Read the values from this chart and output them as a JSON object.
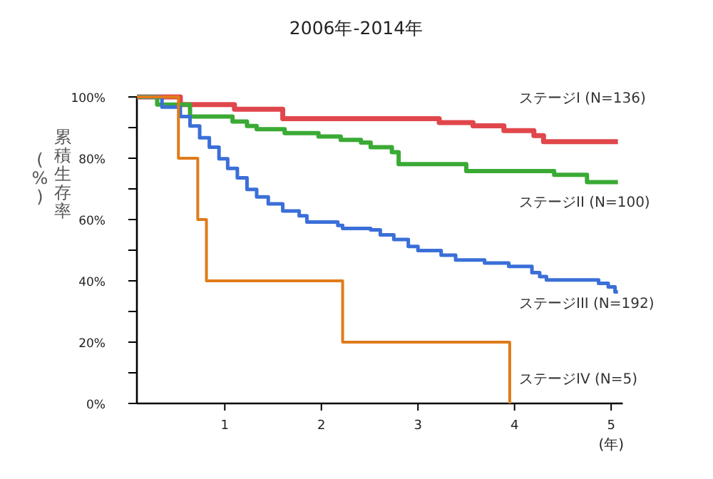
{
  "chart_data": {
    "type": "step",
    "title": "2006年-2014年",
    "xlabel": "(年)",
    "ylabel": "累積生存率\n(%)",
    "xlim": [
      0.09,
      5.12
    ],
    "xticks": [
      1,
      2,
      3,
      4,
      5
    ],
    "ylim": [
      0,
      100
    ],
    "yticks": [
      {
        "value": 0,
        "label": "0%"
      },
      {
        "value": 10,
        "label": null
      },
      {
        "value": 20,
        "label": "20%"
      },
      {
        "value": 30,
        "label": null
      },
      {
        "value": 40,
        "label": "40%"
      },
      {
        "value": 50,
        "label": null
      },
      {
        "value": 60,
        "label": "60%"
      },
      {
        "value": 70,
        "label": null
      },
      {
        "value": 80,
        "label": "80%"
      },
      {
        "value": 90,
        "label": null
      },
      {
        "value": 100,
        "label": "100%"
      }
    ],
    "marker": "none",
    "line_style": "solid",
    "grid": false,
    "series": [
      {
        "name": "ステージI (N=136)",
        "color": "#e0474c",
        "x": [
          0.09,
          0.54,
          1.1,
          1.6,
          3.22,
          3.57,
          3.89,
          4.2,
          4.3,
          5.07
        ],
        "values": [
          100,
          97.5,
          96,
          92.9,
          91.6,
          90.6,
          89,
          87.4,
          85.4,
          85.4
        ]
      },
      {
        "name": "ステージII (N=100)",
        "color": "#3aaa35",
        "x": [
          0.09,
          0.3,
          0.64,
          1.08,
          1.23,
          1.33,
          1.62,
          1.97,
          2.2,
          2.41,
          2.51,
          2.73,
          2.8,
          3.5,
          4.41,
          4.75,
          5.07
        ],
        "values": [
          100,
          97.5,
          93.6,
          92,
          90.5,
          89.5,
          88.2,
          87.1,
          86,
          85.1,
          83.6,
          82,
          78.1,
          75.8,
          74.6,
          72.2,
          72.2
        ]
      },
      {
        "name": "ステージIII (N=192)",
        "color": "#3b6fd8",
        "x": [
          0.09,
          0.35,
          0.54,
          0.64,
          0.74,
          0.84,
          0.94,
          1.03,
          1.13,
          1.23,
          1.33,
          1.45,
          1.6,
          1.77,
          1.85,
          2.17,
          2.22,
          2.51,
          2.61,
          2.75,
          2.9,
          3.0,
          3.24,
          3.39,
          3.69,
          3.94,
          4.18,
          4.26,
          4.33,
          4.87,
          4.97,
          5.04,
          5.07
        ],
        "values": [
          100,
          96.7,
          93.6,
          90.5,
          86.7,
          83.6,
          79.8,
          76.7,
          73.6,
          69.8,
          67.4,
          65.1,
          62.8,
          61.2,
          59.2,
          58.1,
          57.1,
          56.6,
          55,
          53.5,
          51.2,
          49.9,
          48.4,
          46.8,
          45.8,
          44.7,
          42.7,
          41.4,
          40.3,
          39.2,
          38,
          36.4,
          36.4
        ]
      },
      {
        "name": "ステージIV (N=5)",
        "color": "#e07b1a",
        "x": [
          0.09,
          0.52,
          0.72,
          0.81,
          2.22,
          3.95
        ],
        "values": [
          100,
          80,
          60,
          40,
          20,
          0
        ]
      }
    ]
  }
}
